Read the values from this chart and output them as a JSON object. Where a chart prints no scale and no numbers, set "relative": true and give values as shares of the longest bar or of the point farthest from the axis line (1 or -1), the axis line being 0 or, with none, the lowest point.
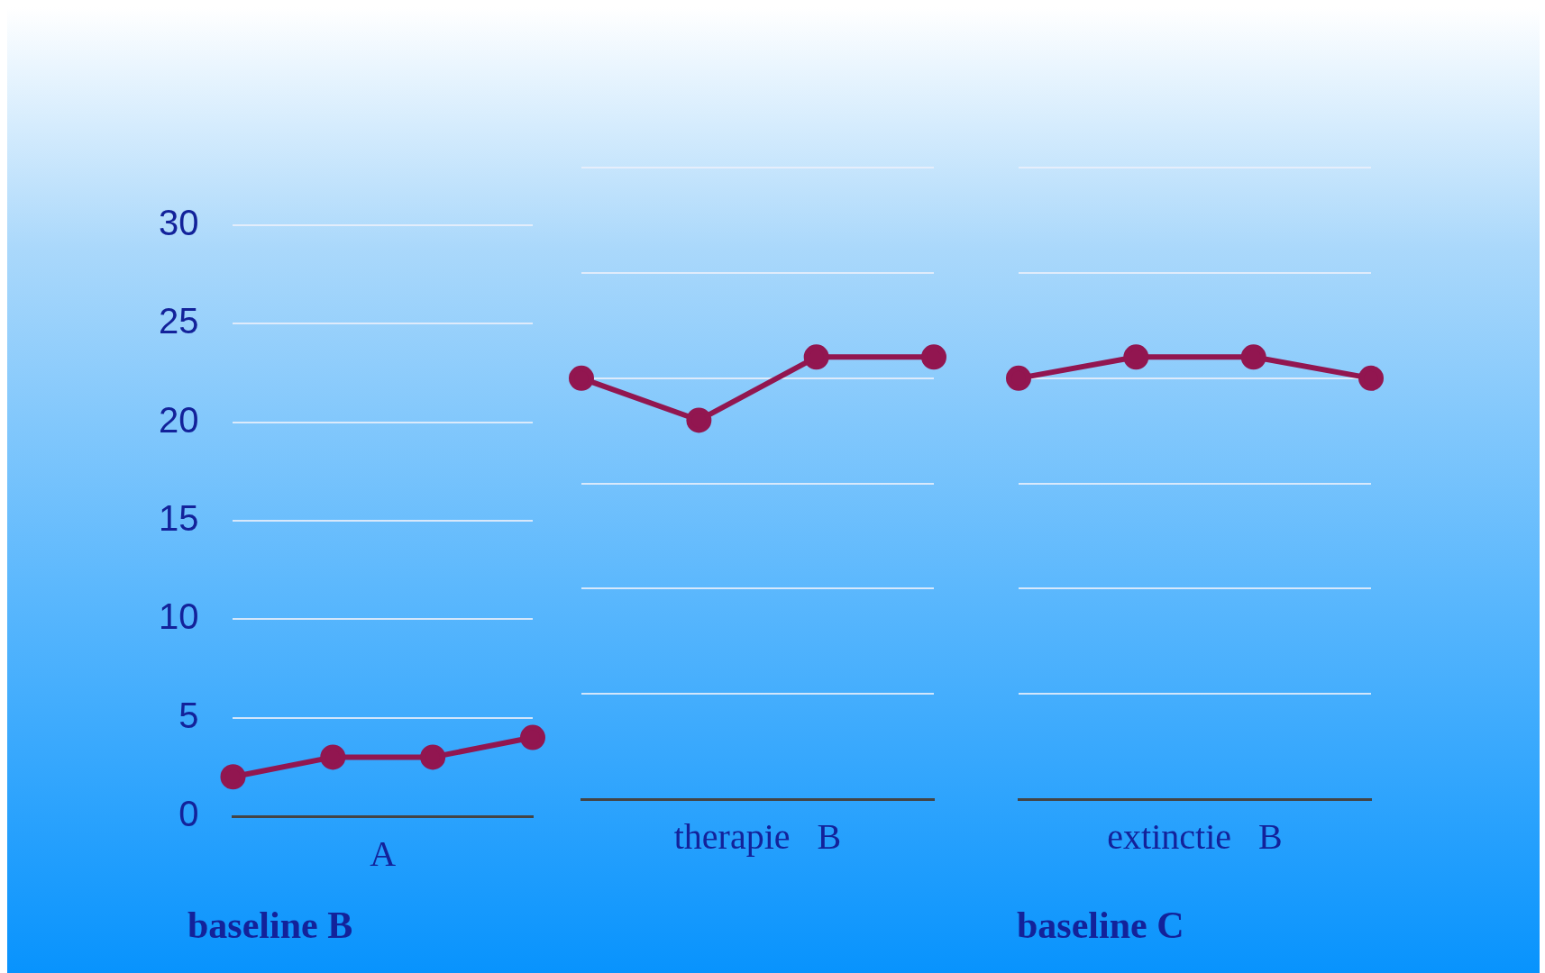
{
  "chart_data": [
    {
      "type": "line",
      "categories": [
        null,
        null,
        null,
        null
      ],
      "series": [
        {
          "color": "#921650",
          "values": [
            2,
            3,
            3,
            4
          ]
        }
      ],
      "xlabel": "A",
      "annotations": [
        "baseline B"
      ],
      "ylim": [
        0,
        30
      ],
      "yticks": [
        0,
        5,
        10,
        15,
        20,
        25,
        30
      ],
      "grid": "y",
      "tick_labels": "y",
      "marker": "circle",
      "line_style": "solid"
    },
    {
      "type": "line",
      "categories": [
        null,
        null,
        null,
        null
      ],
      "series": [
        {
          "color": "#921650",
          "values": [
            0.952,
            0.857,
            1,
            1
          ]
        }
      ],
      "xlabel": "therapie   B",
      "relative": true,
      "grid": "y",
      "tick_labels": false,
      "marker": "circle",
      "line_style": "solid"
    },
    {
      "type": "line",
      "categories": [
        null,
        null,
        null,
        null
      ],
      "series": [
        {
          "color": "#921650",
          "values": [
            0.952,
            1,
            1,
            0.952
          ]
        }
      ],
      "xlabel": "extinctie   B",
      "annotations": [
        "baseline C"
      ],
      "relative": true,
      "grid": "y",
      "tick_labels": false,
      "marker": "circle",
      "line_style": "solid"
    }
  ]
}
